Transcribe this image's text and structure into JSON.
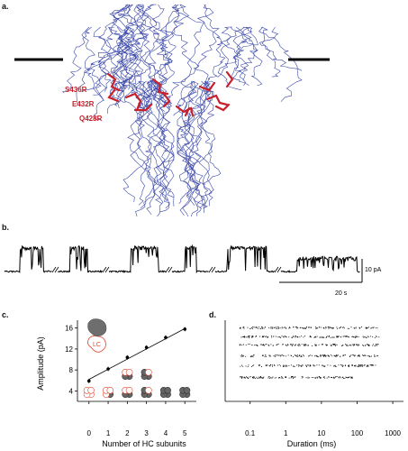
{
  "panels": {
    "a": "a.",
    "b": "b.",
    "c": "c.",
    "d": "d."
  },
  "structure": {
    "mutations": [
      "S436R",
      "E432R",
      "Q428R"
    ],
    "colors": {
      "backbone": "#3a48a8",
      "residues": "#c8202a",
      "membrane": "#000000"
    }
  },
  "trace": {
    "scale_current": "10 pA",
    "scale_time": "20 s"
  },
  "chart_data": [
    {
      "type": "scatter",
      "panel": "c",
      "xlabel": "Number of  HC subunits",
      "ylabel": "Amplitude (pA)",
      "x_ticks": [
        0,
        1,
        2,
        3,
        4,
        5
      ],
      "y_ticks": [
        4,
        8,
        12,
        16
      ],
      "xlim": [
        -0.6,
        5.6
      ],
      "ylim": [
        2,
        17.5
      ],
      "series": [
        {
          "x": [
            0,
            1,
            2,
            3,
            4,
            5
          ],
          "y": [
            5.9,
            8.2,
            10.4,
            12.3,
            14.2,
            15.8
          ]
        }
      ],
      "fit_line": {
        "x": [
          0,
          5
        ],
        "y": [
          6.2,
          15.9
        ]
      },
      "inset_label": "LC",
      "colors": {
        "hc": "#666666",
        "lc": "#e2452b"
      }
    },
    {
      "type": "scatter",
      "panel": "d",
      "xlabel": "Duration (ms)",
      "x_tick_labels": [
        "0.1",
        "1",
        "10",
        "100",
        "1000"
      ],
      "x_scale": "log",
      "xlim": [
        0.02,
        2000
      ],
      "levels": 6
    }
  ]
}
